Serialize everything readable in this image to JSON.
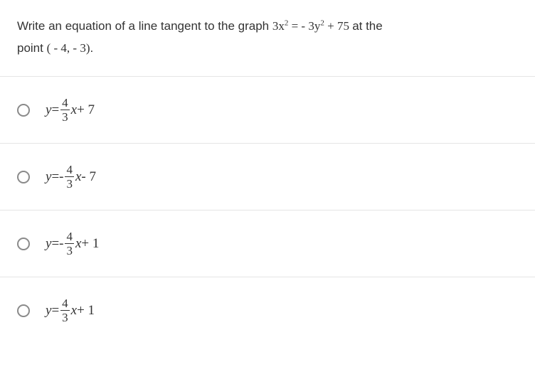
{
  "question": {
    "text_before": "Write an equation of a line tangent to the graph ",
    "equation_lhs_coef": "3",
    "equation_lhs_var": "x",
    "equation_lhs_exp": "2",
    "equation_eq": " = ",
    "equation_rhs_sign": " - ",
    "equation_rhs_coef": "3",
    "equation_rhs_var": "y",
    "equation_rhs_exp": "2",
    "equation_rhs_plus": " + ",
    "equation_rhs_const": "75",
    "text_after1": " at the",
    "text_line2_before": "point ",
    "point": "( - 4, - 3)",
    "text_line2_after": "."
  },
  "options": [
    {
      "y": "y",
      "eq": " = ",
      "sign": "",
      "num": "4",
      "den": "3",
      "x": "x",
      "tail": " + 7"
    },
    {
      "y": "y",
      "eq": " = ",
      "sign": " - ",
      "num": "4",
      "den": "3",
      "x": "x",
      "tail": " - 7"
    },
    {
      "y": "y",
      "eq": " = ",
      "sign": " - ",
      "num": "4",
      "den": "3",
      "x": "x",
      "tail": " + 1"
    },
    {
      "y": "y",
      "eq": " = ",
      "sign": "",
      "num": "4",
      "den": "3",
      "x": "x",
      "tail": " + 1"
    }
  ],
  "colors": {
    "text": "#333333",
    "border": "#e5e5e5",
    "radio_border": "#8a8a8a",
    "background": "#ffffff"
  },
  "typography": {
    "body_font": "Arial",
    "math_font": "Times New Roman",
    "question_fontsize": 17,
    "option_fontsize": 19
  }
}
